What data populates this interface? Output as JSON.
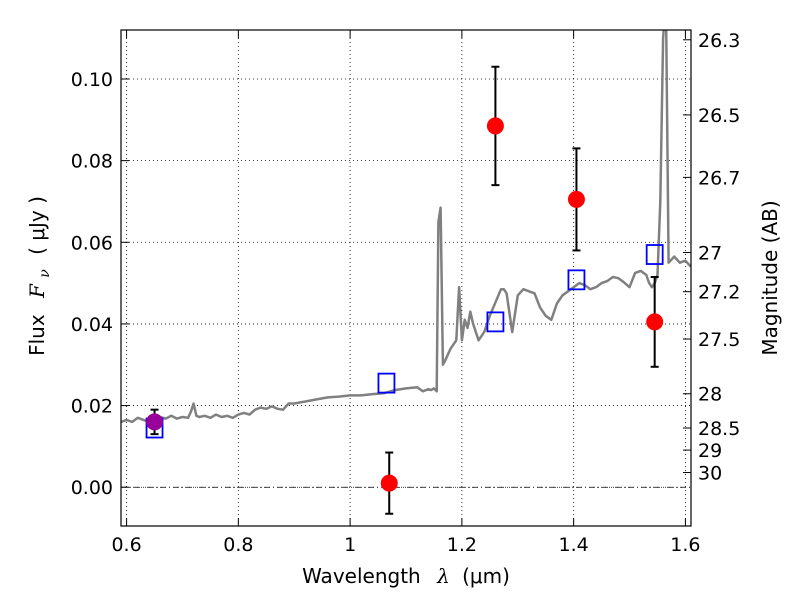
{
  "chart_data": {
    "type": "scatter",
    "title": "",
    "xlabel": {
      "text": "Wavelength",
      "symbol": "λ",
      "unit": "(μm)"
    },
    "ylabel": {
      "text": "Flux",
      "symbol": "F",
      "subscript": "ν",
      "unit": "( μJy )"
    },
    "y2label": "Magnitude (AB)",
    "xlim": [
      0.59,
      1.61
    ],
    "ylim": [
      -0.0095,
      0.112
    ],
    "grid": true,
    "x_ticks": [
      0.6,
      0.8,
      1.0,
      1.2,
      1.4,
      1.6
    ],
    "x_tick_labels": [
      "0.6",
      "0.8",
      "1",
      "1.2",
      "1.4",
      "1.6"
    ],
    "y_ticks": [
      0.0,
      0.02,
      0.04,
      0.06,
      0.08,
      0.1
    ],
    "y_tick_labels": [
      "0.00",
      "0.02",
      "0.04",
      "0.06",
      "0.08",
      "0.10"
    ],
    "mag_ticks": [
      {
        "label": "26.3",
        "flux": 0.1096
      },
      {
        "label": "26.5",
        "flux": 0.0912
      },
      {
        "label": "26.7",
        "flux": 0.0759
      },
      {
        "label": "27",
        "flux": 0.0575
      },
      {
        "label": "27.2",
        "flux": 0.0479
      },
      {
        "label": "27.5",
        "flux": 0.0363
      },
      {
        "label": "28",
        "flux": 0.0229
      },
      {
        "label": "28.5",
        "flux": 0.0145
      },
      {
        "label": "29",
        "flux": 0.0091
      },
      {
        "label": "30",
        "flux": 0.0036
      }
    ],
    "series": [
      {
        "kind": "line",
        "color": "#808080",
        "x": [
          0.59,
          0.6,
          0.61,
          0.62,
          0.63,
          0.64,
          0.65,
          0.66,
          0.67,
          0.68,
          0.69,
          0.7,
          0.71,
          0.715,
          0.72,
          0.725,
          0.73,
          0.74,
          0.75,
          0.76,
          0.77,
          0.78,
          0.79,
          0.8,
          0.81,
          0.82,
          0.83,
          0.84,
          0.85,
          0.86,
          0.87,
          0.88,
          0.89,
          0.9,
          0.92,
          0.94,
          0.96,
          0.98,
          1.0,
          1.02,
          1.04,
          1.06,
          1.08,
          1.1,
          1.12,
          1.13,
          1.14,
          1.145,
          1.15,
          1.155,
          1.158,
          1.162,
          1.166,
          1.17,
          1.18,
          1.19,
          1.195,
          1.2,
          1.205,
          1.21,
          1.215,
          1.22,
          1.23,
          1.24,
          1.25,
          1.27,
          1.275,
          1.28,
          1.29,
          1.3,
          1.31,
          1.32,
          1.33,
          1.34,
          1.35,
          1.36,
          1.37,
          1.38,
          1.39,
          1.4,
          1.41,
          1.42,
          1.43,
          1.44,
          1.45,
          1.46,
          1.47,
          1.48,
          1.49,
          1.5,
          1.51,
          1.52,
          1.53,
          1.535,
          1.54,
          1.545,
          1.55,
          1.555,
          1.56,
          1.565,
          1.57,
          1.58,
          1.59,
          1.6,
          1.61
        ],
        "y": [
          0.016,
          0.0165,
          0.016,
          0.017,
          0.0165,
          0.016,
          0.0168,
          0.0172,
          0.0168,
          0.0175,
          0.0168,
          0.0172,
          0.017,
          0.0185,
          0.0205,
          0.0175,
          0.0172,
          0.0175,
          0.017,
          0.0178,
          0.0172,
          0.0175,
          0.017,
          0.0178,
          0.0182,
          0.0178,
          0.019,
          0.0195,
          0.0192,
          0.0198,
          0.0192,
          0.019,
          0.0205,
          0.0205,
          0.021,
          0.0215,
          0.022,
          0.0222,
          0.0225,
          0.0225,
          0.0228,
          0.023,
          0.0238,
          0.0242,
          0.0245,
          0.0235,
          0.024,
          0.0238,
          0.0242,
          0.0235,
          0.065,
          0.0685,
          0.03,
          0.031,
          0.034,
          0.036,
          0.049,
          0.036,
          0.041,
          0.039,
          0.043,
          0.04,
          0.036,
          0.038,
          0.042,
          0.0485,
          0.0485,
          0.0475,
          0.038,
          0.047,
          0.0485,
          0.048,
          0.0475,
          0.044,
          0.042,
          0.041,
          0.045,
          0.047,
          0.048,
          0.049,
          0.05,
          0.0495,
          0.0485,
          0.049,
          0.05,
          0.0505,
          0.0515,
          0.0512,
          0.0502,
          0.049,
          0.0525,
          0.053,
          0.052,
          0.05,
          0.049,
          0.05,
          0.052,
          0.07,
          0.11,
          0.12,
          0.055,
          0.0565,
          0.055,
          0.0555,
          0.054
        ]
      },
      {
        "kind": "open-square",
        "color": "#0000ff",
        "x": [
          0.65,
          1.065,
          1.26,
          1.405,
          1.545
        ],
        "y": [
          0.0145,
          0.0255,
          0.0405,
          0.0508,
          0.057
        ]
      },
      {
        "kind": "errorbar",
        "color": "#ff0000",
        "x": [
          1.07,
          1.26,
          1.405,
          1.545
        ],
        "y": [
          0.001,
          0.0885,
          0.0705,
          0.0405
        ],
        "yerr": [
          0.0075,
          0.0145,
          0.0125,
          0.011
        ]
      },
      {
        "kind": "errorbar",
        "color": "#990099",
        "x": [
          0.65
        ],
        "y": [
          0.016
        ],
        "yerr": [
          0.003
        ]
      }
    ],
    "reference_line": {
      "y": 0.0,
      "style": "dash-dot",
      "color": "#000000"
    }
  }
}
